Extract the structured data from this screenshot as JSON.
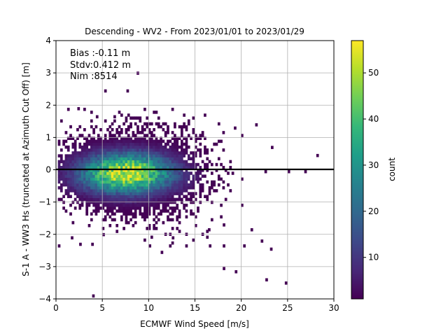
{
  "chart_data": {
    "type": "heatmap",
    "title": "Descending - WV2 - From 2023/01/01 to 2023/01/29",
    "xlabel": "ECMWF Wind Speed [m/s]",
    "ylabel": "S-1 A - WW3 Hs (truncated at Azimuth Cut Off) [m]",
    "xlim": [
      0,
      30
    ],
    "ylim": [
      -4,
      4
    ],
    "xticks": [
      "0",
      "5",
      "10",
      "15",
      "20",
      "25",
      "30"
    ],
    "yticks": [
      "−4",
      "−3",
      "−2",
      "−1",
      "0",
      "1",
      "2",
      "3",
      "4"
    ],
    "grid": true,
    "reference_line_y": 0,
    "stats": {
      "bias": "Bias :-0.11 m",
      "stdv": "Stdv:0.412 m",
      "nim": "Nim :8514"
    },
    "colorbar": {
      "label": "count",
      "range": [
        1,
        57
      ],
      "ticks": [
        "10",
        "20",
        "30",
        "40",
        "50"
      ],
      "colormap": "viridis"
    },
    "density_peak": {
      "x": 7.5,
      "y": -0.15,
      "count": 57
    },
    "outliers": [
      [
        8.7,
        2.95
      ],
      [
        5.2,
        2.4
      ],
      [
        7.6,
        2.4
      ],
      [
        2.3,
        1.85
      ],
      [
        4.3,
        1.6
      ],
      [
        6.2,
        1.6
      ],
      [
        19.2,
        1.25
      ],
      [
        21.5,
        1.35
      ],
      [
        23.2,
        0.65
      ],
      [
        25,
        -0.1
      ],
      [
        26.8,
        -0.1
      ],
      [
        28.1,
        0.4
      ],
      [
        22.5,
        -0.1
      ],
      [
        21,
        -1.9
      ],
      [
        22.1,
        -2.25
      ],
      [
        23.1,
        -2.5
      ],
      [
        20.2,
        -2.4
      ],
      [
        18,
        -2.4
      ],
      [
        16.5,
        -2.4
      ],
      [
        18,
        -3.1
      ],
      [
        19.3,
        -3.2
      ],
      [
        22.6,
        -3.45
      ],
      [
        24.7,
        -3.55
      ],
      [
        3.9,
        -3.95
      ],
      [
        5,
        -2.05
      ],
      [
        10,
        -2.4
      ],
      [
        11.3,
        -2.6
      ],
      [
        12.5,
        -2.15
      ],
      [
        1.6,
        -2.15
      ],
      [
        2.5,
        -2.35
      ],
      [
        3.8,
        -2.35
      ],
      [
        12.2,
        -2.4
      ],
      [
        18,
        -1.75
      ],
      [
        16.4,
        -1.9
      ]
    ]
  },
  "colors": {
    "zero_line": "#000000",
    "grid": "#b0b0b0",
    "viridis": [
      "#440154",
      "#482878",
      "#3e4989",
      "#31688e",
      "#26828e",
      "#1f9e89",
      "#35b779",
      "#6ece58",
      "#b5de2b",
      "#fde725"
    ]
  }
}
